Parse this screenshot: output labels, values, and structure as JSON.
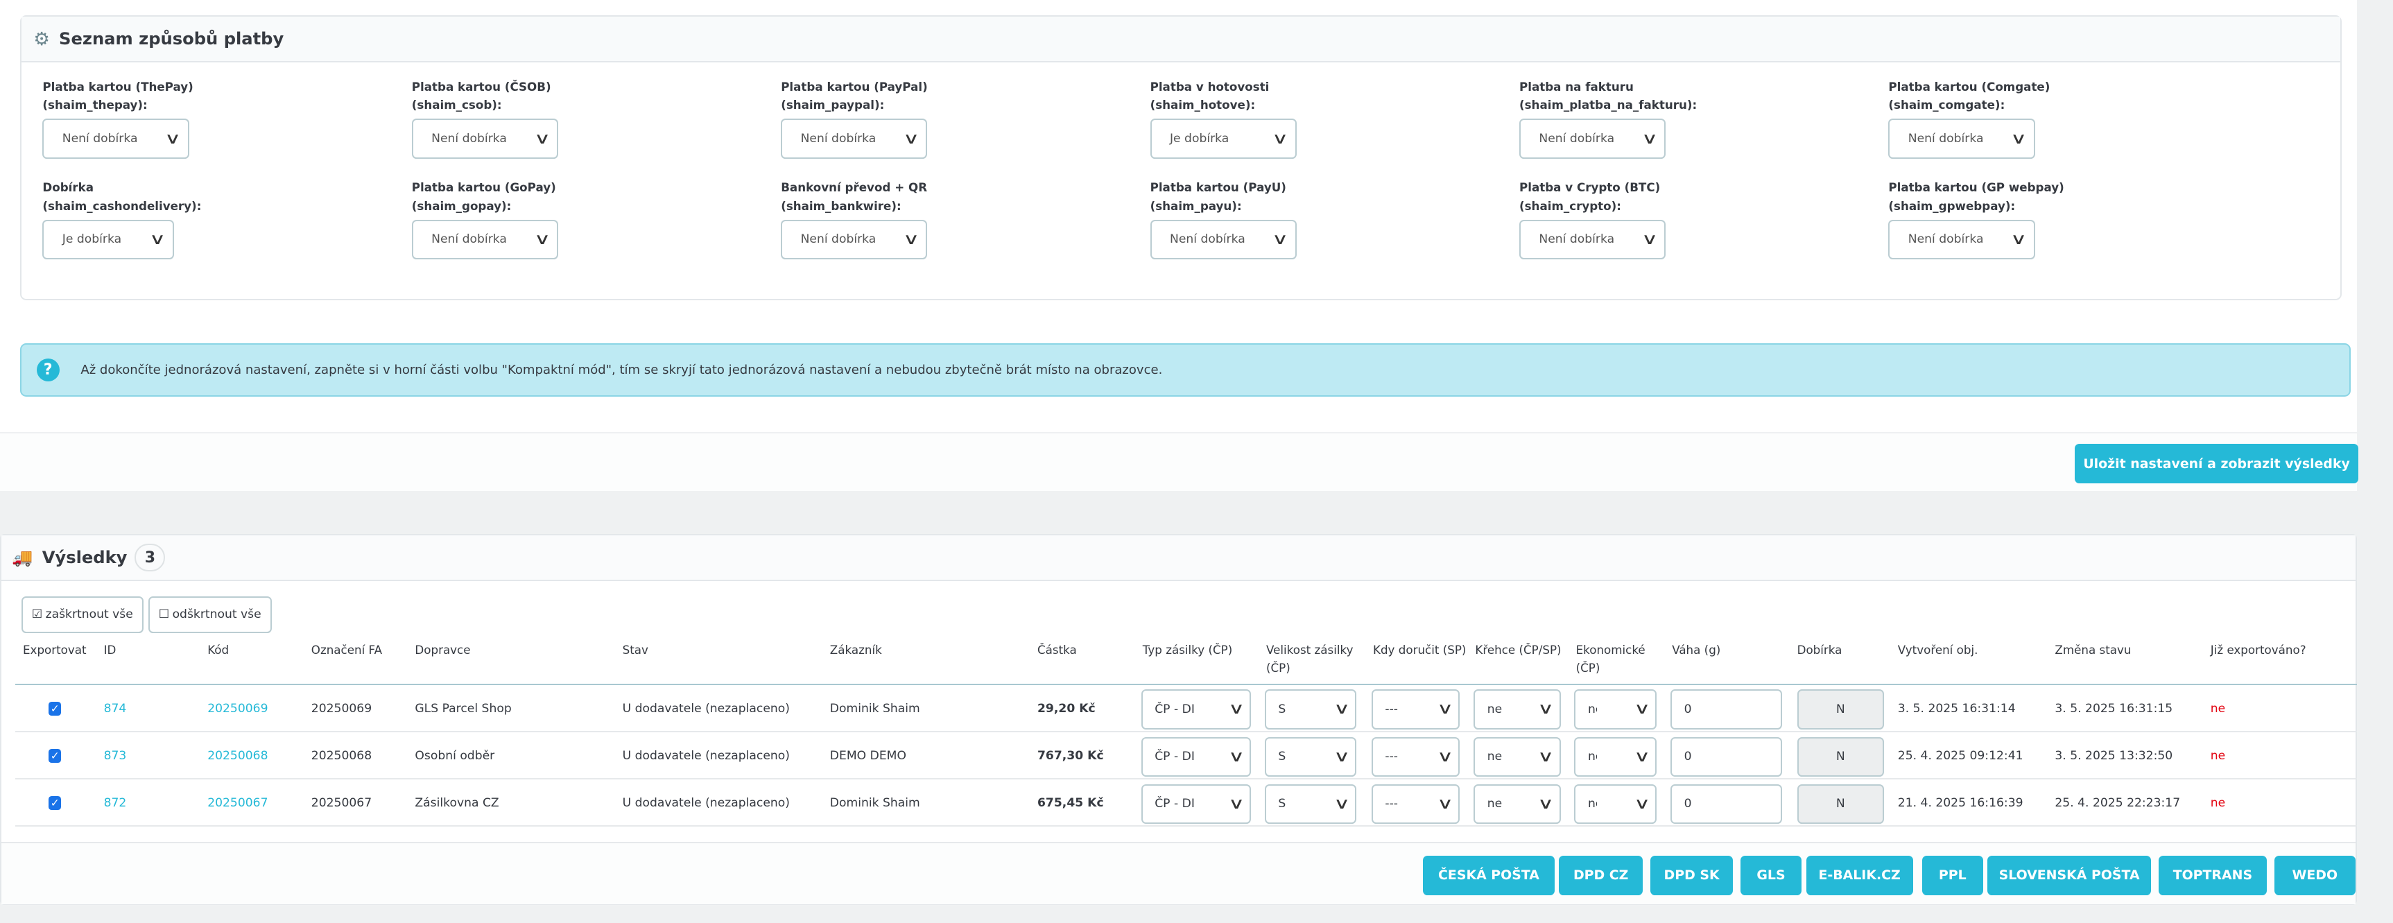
{
  "payment_panel": {
    "title": "Seznam způsobů platby",
    "icon": "gears-icon",
    "items": [
      {
        "label": "Platba kartou (ThePay)",
        "code": "(shaim_thepay):",
        "value": "Není dobírka"
      },
      {
        "label": "Platba kartou (ČSOB)",
        "code": "(shaim_csob):",
        "value": "Není dobírka"
      },
      {
        "label": "Platba kartou (PayPal)",
        "code": "(shaim_paypal):",
        "value": "Není dobírka"
      },
      {
        "label": "Platba v hotovosti",
        "code": "(shaim_hotove):",
        "value": "Je dobírka"
      },
      {
        "label": "Platba na fakturu",
        "code": "(shaim_platba_na_fakturu):",
        "value": "Není dobírka"
      },
      {
        "label": "Platba kartou (Comgate)",
        "code": "(shaim_comgate):",
        "value": "Není dobírka"
      },
      {
        "label": "Dobírka",
        "code": "(shaim_cashondelivery):",
        "value": "Je dobírka"
      },
      {
        "label": "Platba kartou (GoPay)",
        "code": "(shaim_gopay):",
        "value": "Není dobírka"
      },
      {
        "label": "Bankovní převod + QR",
        "code": "(shaim_bankwire):",
        "value": "Není dobírka"
      },
      {
        "label": "Platba kartou (PayU)",
        "code": "(shaim_payu):",
        "value": "Není dobírka"
      },
      {
        "label": "Platba v Crypto (BTC)",
        "code": "(shaim_crypto):",
        "value": "Není dobírka"
      },
      {
        "label": "Platba kartou (GP webpay)",
        "code": "(shaim_gpwebpay):",
        "value": "Není dobírka"
      }
    ]
  },
  "info": {
    "icon": "question-icon",
    "text": "Až dokončíte jednorázová nastavení, zapněte si v horní části volbu \"Kompaktní mód\", tím se skryjí tato jednorázová nastavení a nebudou zbytečně brát místo na obrazovce."
  },
  "save_button": "Uložit nastavení a zobrazit výsledky",
  "results": {
    "title": "Výsledky",
    "count": "3",
    "icon": "truck-icon",
    "check_all": "zaškrtnout vše",
    "uncheck_all": "odškrtnout vše",
    "columns": [
      "Exportovat",
      "ID",
      "Kód",
      "Označení FA",
      "Dopravce",
      "Stav",
      "Zákazník",
      "Částka",
      "Typ zásilky (ČP)",
      "Velikost zásilky (ČP)",
      "Kdy doručit (SP)",
      "Křehce (ČP/SP)",
      "Ekonomické (ČP)",
      "Váha (g)",
      "Dobírka",
      "Vytvoření obj.",
      "Změna stavu",
      "Již exportováno?"
    ],
    "rows": [
      {
        "checked": true,
        "id": "874",
        "code": "20250069",
        "fa": "20250069",
        "carrier": "GLS Parcel Shop",
        "status": "U dodavatele (nezaplaceno)",
        "customer": "Dominik Shaim",
        "amount": "29,20 Kč",
        "type": "ČP - DI",
        "size": "S",
        "when": "---",
        "fragile": "ne",
        "economic": "ne",
        "weight": "0",
        "cod": "N",
        "created": "3. 5. 2025 16:31:14",
        "changed": "3. 5. 2025 16:31:15",
        "exported": "ne"
      },
      {
        "checked": true,
        "id": "873",
        "code": "20250068",
        "fa": "20250068",
        "carrier": "Osobní odběr",
        "status": "U dodavatele (nezaplaceno)",
        "customer": "DEMO DEMO",
        "amount": "767,30 Kč",
        "type": "ČP - DI",
        "size": "S",
        "when": "---",
        "fragile": "ne",
        "economic": "ne",
        "weight": "0",
        "cod": "N",
        "created": "25. 4. 2025 09:12:41",
        "changed": "3. 5. 2025 13:32:50",
        "exported": "ne"
      },
      {
        "checked": true,
        "id": "872",
        "code": "20250067",
        "fa": "20250067",
        "carrier": "Zásilkovna CZ",
        "status": "U dodavatele (nezaplaceno)",
        "customer": "Dominik Shaim",
        "amount": "675,45 Kč",
        "type": "ČP - DI",
        "size": "S",
        "when": "---",
        "fragile": "ne",
        "economic": "ne",
        "weight": "0",
        "cod": "N",
        "created": "21. 4. 2025 16:16:39",
        "changed": "25. 4. 2025 22:23:17",
        "exported": "ne"
      }
    ],
    "carrier_buttons": [
      "ČESKÁ POŠTA",
      "DPD CZ",
      "DPD SK",
      "GLS",
      "E-BALIK.CZ",
      "PPL",
      "SLOVENSKÁ POŠTA",
      "TOPTRANS",
      "WEDO"
    ]
  },
  "colors": {
    "accent": "#25b9d7",
    "info_bg": "#beeaf3",
    "not_exported": "#e30613"
  }
}
